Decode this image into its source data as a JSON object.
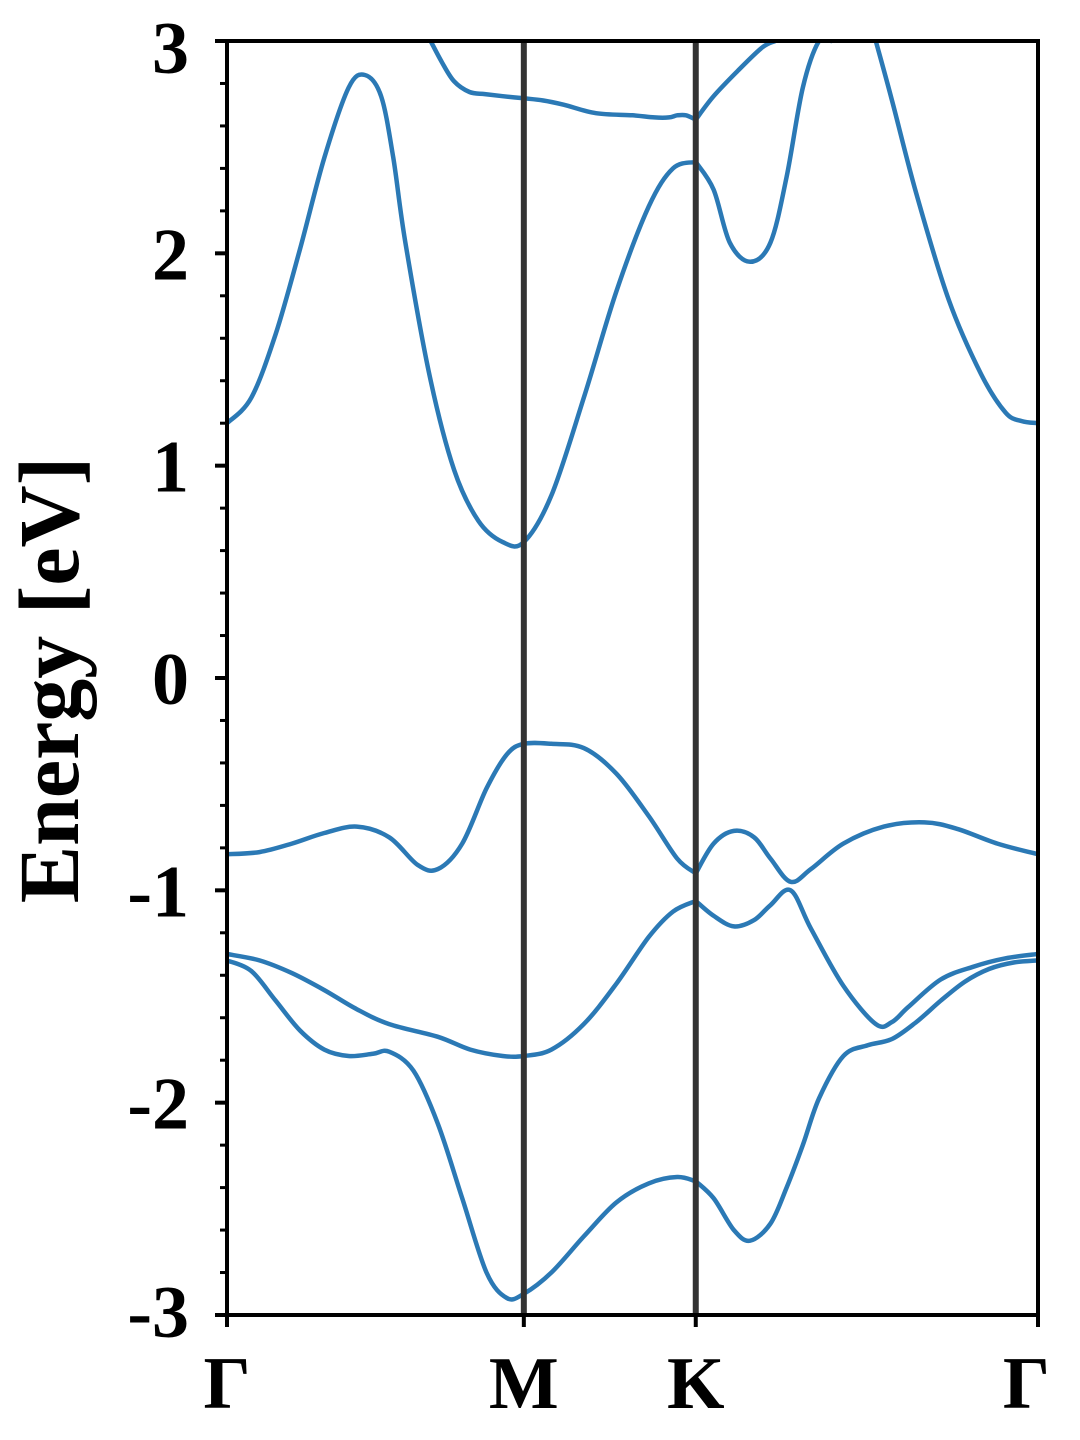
{
  "chart_data": {
    "type": "line",
    "title": "",
    "xlabel": "",
    "ylabel": "Energy [eV]",
    "xlim": [
      0,
      1
    ],
    "ylim": [
      -3,
      3
    ],
    "grid": false,
    "legend": "none",
    "xticks": [
      {
        "label": "Γ",
        "x": 0
      },
      {
        "label": "M",
        "x": 0.366
      },
      {
        "label": "K",
        "x": 0.578
      },
      {
        "label": "Γ",
        "x": 1
      }
    ],
    "yticks": [
      -3,
      -2,
      -1,
      0,
      1,
      2,
      3
    ],
    "yticklabels": [
      "-3",
      "-2",
      "-1",
      "0",
      "1",
      "2",
      "3"
    ],
    "ytick_minor_step": 0.2,
    "kpath_lines": [
      0.366,
      0.578
    ],
    "colors": {
      "band": "#2b79b5",
      "vline": "#333333",
      "axes": "#000000"
    },
    "series": [
      {
        "x": [
          0.251,
          0.265,
          0.28,
          0.299,
          0.318,
          0.34,
          0.366,
          0.39,
          0.415,
          0.455,
          0.5,
          0.527,
          0.545,
          0.555,
          0.566,
          0.578
        ],
        "y": [
          3.0,
          2.9,
          2.81,
          2.76,
          2.75,
          2.74,
          2.73,
          2.72,
          2.7,
          2.66,
          2.65,
          2.64,
          2.64,
          2.65,
          2.65,
          2.63
        ]
      },
      {
        "x": [
          0.578,
          0.6,
          0.63,
          0.66,
          0.676
        ],
        "y": [
          2.63,
          2.74,
          2.86,
          2.97,
          3.0
        ]
      },
      {
        "x": [
          0.0,
          0.03,
          0.06,
          0.09,
          0.12,
          0.15,
          0.17,
          0.19,
          0.205,
          0.22,
          0.25,
          0.28,
          0.31,
          0.34,
          0.366,
          0.4,
          0.44,
          0.48,
          0.52,
          0.55,
          0.578
        ],
        "y": [
          1.2,
          1.32,
          1.62,
          2.02,
          2.45,
          2.78,
          2.84,
          2.74,
          2.45,
          2.05,
          1.42,
          0.98,
          0.74,
          0.64,
          0.64,
          0.86,
          1.32,
          1.82,
          2.22,
          2.4,
          2.43
        ]
      },
      {
        "x": [
          0.578,
          0.6,
          0.62,
          0.645,
          0.67,
          0.69,
          0.71,
          0.73,
          0.745
        ],
        "y": [
          2.43,
          2.3,
          2.05,
          1.96,
          2.05,
          2.36,
          2.78,
          3.0,
          3.0
        ]
      },
      {
        "x": [
          0.8,
          0.82,
          0.85,
          0.89,
          0.93,
          0.96,
          0.98,
          1.0
        ],
        "y": [
          3.0,
          2.72,
          2.28,
          1.78,
          1.43,
          1.25,
          1.21,
          1.2
        ]
      },
      {
        "x": [
          0.0,
          0.04,
          0.08,
          0.12,
          0.16,
          0.2,
          0.235,
          0.26,
          0.29,
          0.32,
          0.345,
          0.366,
          0.4,
          0.44,
          0.48,
          0.52,
          0.555,
          0.578
        ],
        "y": [
          -0.83,
          -0.82,
          -0.78,
          -0.73,
          -0.7,
          -0.75,
          -0.88,
          -0.9,
          -0.78,
          -0.52,
          -0.36,
          -0.31,
          -0.31,
          -0.33,
          -0.45,
          -0.65,
          -0.85,
          -0.92
        ]
      },
      {
        "x": [
          0.578,
          0.6,
          0.625,
          0.65,
          0.67,
          0.695,
          0.72,
          0.76,
          0.81,
          0.86,
          0.9,
          0.95,
          1.0
        ],
        "y": [
          -0.92,
          -0.78,
          -0.72,
          -0.75,
          -0.85,
          -0.96,
          -0.9,
          -0.78,
          -0.7,
          -0.68,
          -0.71,
          -0.78,
          -0.83
        ]
      },
      {
        "x": [
          0.0,
          0.04,
          0.08,
          0.12,
          0.16,
          0.2,
          0.26,
          0.3,
          0.34,
          0.366,
          0.4,
          0.44,
          0.48,
          0.52,
          0.55,
          0.578
        ],
        "y": [
          -1.3,
          -1.33,
          -1.39,
          -1.47,
          -1.56,
          -1.63,
          -1.69,
          -1.75,
          -1.78,
          -1.78,
          -1.75,
          -1.63,
          -1.44,
          -1.22,
          -1.1,
          -1.05
        ]
      },
      {
        "x": [
          0.578,
          0.6,
          0.625,
          0.65,
          0.67,
          0.695,
          0.72,
          0.76,
          0.8,
          0.82,
          0.84,
          0.88,
          0.92,
          0.96,
          1.0
        ],
        "y": [
          -1.05,
          -1.12,
          -1.17,
          -1.14,
          -1.07,
          -1.0,
          -1.18,
          -1.45,
          -1.63,
          -1.62,
          -1.55,
          -1.42,
          -1.36,
          -1.32,
          -1.3
        ]
      },
      {
        "x": [
          0.0,
          0.03,
          0.06,
          0.09,
          0.12,
          0.15,
          0.18,
          0.2,
          0.23,
          0.26,
          0.29,
          0.32,
          0.345,
          0.366,
          0.4,
          0.44,
          0.48,
          0.52,
          0.555,
          0.578
        ],
        "y": [
          -1.33,
          -1.38,
          -1.52,
          -1.66,
          -1.75,
          -1.78,
          -1.77,
          -1.76,
          -1.85,
          -2.1,
          -2.45,
          -2.8,
          -2.92,
          -2.9,
          -2.8,
          -2.63,
          -2.47,
          -2.38,
          -2.35,
          -2.37
        ]
      },
      {
        "x": [
          0.578,
          0.6,
          0.625,
          0.645,
          0.67,
          0.69,
          0.71,
          0.73,
          0.76,
          0.79,
          0.82,
          0.85,
          0.88,
          0.91,
          0.94,
          0.97,
          1.0
        ],
        "y": [
          -2.37,
          -2.45,
          -2.6,
          -2.65,
          -2.57,
          -2.4,
          -2.2,
          -1.98,
          -1.78,
          -1.73,
          -1.7,
          -1.62,
          -1.52,
          -1.43,
          -1.37,
          -1.34,
          -1.33
        ]
      }
    ]
  }
}
